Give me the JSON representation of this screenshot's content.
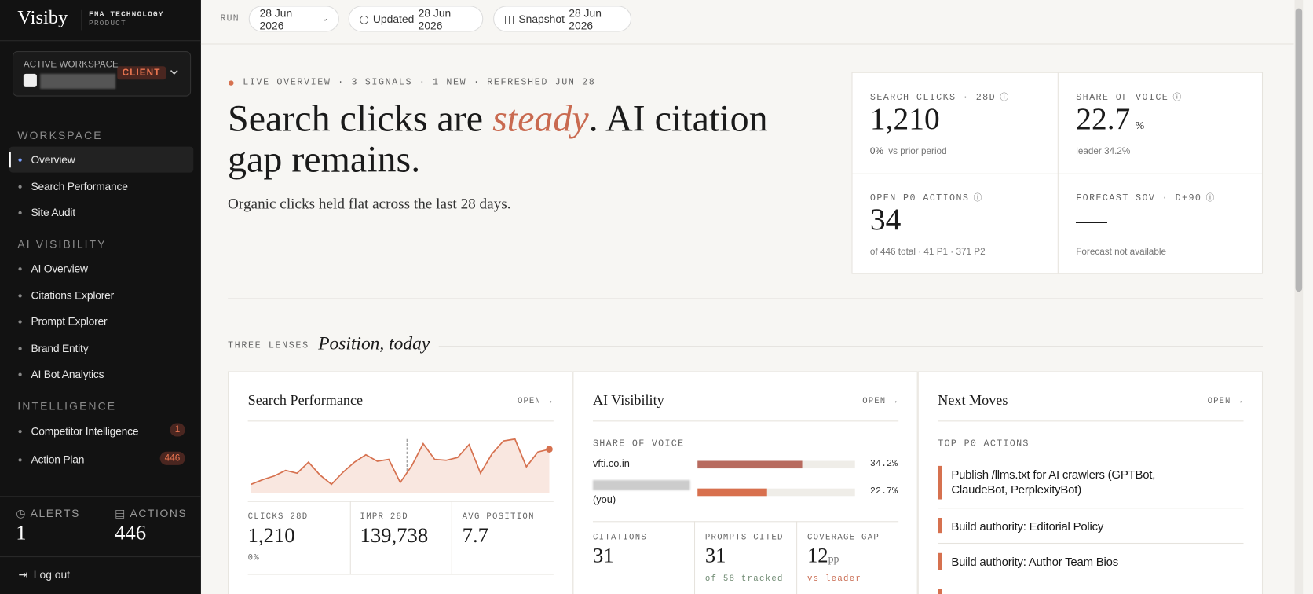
{
  "sidebar": {
    "brand": "Visiby",
    "org": "FNA TECHNOLOGY",
    "org_sub": "PRODUCT",
    "workspace_label": "ACTIVE WORKSPACE",
    "workspace_badge": "CLIENT",
    "sections": [
      {
        "title": "WORKSPACE",
        "items": [
          {
            "label": "Overview"
          },
          {
            "label": "Search Performance"
          },
          {
            "label": "Site Audit"
          }
        ]
      },
      {
        "title": "AI VISIBILITY",
        "items": [
          {
            "label": "AI Overview"
          },
          {
            "label": "Citations Explorer"
          },
          {
            "label": "Prompt Explorer"
          },
          {
            "label": "Brand Entity"
          },
          {
            "label": "AI Bot Analytics"
          }
        ]
      },
      {
        "title": "INTELLIGENCE",
        "items": [
          {
            "label": "Competitor Intelligence",
            "count": 1
          },
          {
            "label": "Action Plan",
            "count": 446
          }
        ]
      }
    ],
    "stats": [
      {
        "label": "ALERTS",
        "value": 1
      },
      {
        "label": "ACTIONS",
        "value": 446
      }
    ],
    "logout": "Log out"
  },
  "topbar": {
    "run_label": "RUN",
    "run_date": "28 Jun 2026",
    "updated_label": "Updated",
    "updated_date": "28 Jun 2026",
    "snapshot_label": "Snapshot",
    "snapshot_date": "28 Jun 2026"
  },
  "hero": {
    "eyebrow": "LIVE OVERVIEW · 3 SIGNALS · 1 NEW · REFRESHED JUN 28",
    "headline_before": "Search clicks are ",
    "headline_accent": "steady",
    "headline_after": ". AI citation gap remains.",
    "subline": "Organic clicks held flat across the last 28 days."
  },
  "kpis": [
    {
      "label": "SEARCH CLICKS · 28D",
      "value": "1,210",
      "note_strong": "0%",
      "note": "vs prior period"
    },
    {
      "label": "SHARE OF VOICE",
      "value": "22.7",
      "unit": "%",
      "note": "leader 34.2%"
    },
    {
      "label": "OPEN P0 ACTIONS",
      "value": "34",
      "note": "of 446 total · 41 P1 · 371 P2"
    },
    {
      "label": "FORECAST SOV · D+90",
      "value": "—",
      "note": "Forecast not available"
    }
  ],
  "lenses": {
    "eyebrow": "THREE LENSES",
    "title": "Position, today"
  },
  "cards": {
    "search": {
      "title": "Search Performance",
      "open": "OPEN →",
      "chart": {
        "type": "area",
        "values": [
          25,
          30,
          34,
          40,
          37,
          49,
          35,
          25,
          38,
          49,
          57,
          50,
          52,
          27,
          45,
          69,
          52,
          51,
          54,
          68,
          37,
          58,
          72,
          74,
          44,
          60,
          63
        ]
      },
      "stats": [
        {
          "label": "CLICKS 28D",
          "value": "1,210",
          "note": "0%"
        },
        {
          "label": "IMPR 28D",
          "value": "139,738"
        },
        {
          "label": "AVG POSITION",
          "value": "7.7"
        }
      ]
    },
    "ai": {
      "title": "AI Visibility",
      "open": "OPEN →",
      "sov_label": "SHARE OF VOICE",
      "sov": [
        {
          "name": "vfti.co.in",
          "value": 34.2,
          "value_label": "34.2%"
        },
        {
          "name": "(you)",
          "value": 22.7,
          "value_label": "22.7%"
        }
      ],
      "stats": [
        {
          "label": "CITATIONS",
          "value": "31"
        },
        {
          "label": "PROMPTS CITED",
          "value": "31",
          "note": "of 58 tracked"
        },
        {
          "label": "COVERAGE GAP",
          "value": "12",
          "unit": "pp",
          "note": "vs leader"
        }
      ]
    },
    "moves": {
      "title": "Next Moves",
      "open": "OPEN →",
      "label": "TOP P0 ACTIONS",
      "items": [
        "Publish /llms.txt for AI crawlers (GPTBot, ClaudeBot, PerplexityBot)",
        "Build authority: Editorial Policy",
        "Build authority: Author Team Bios"
      ]
    }
  }
}
